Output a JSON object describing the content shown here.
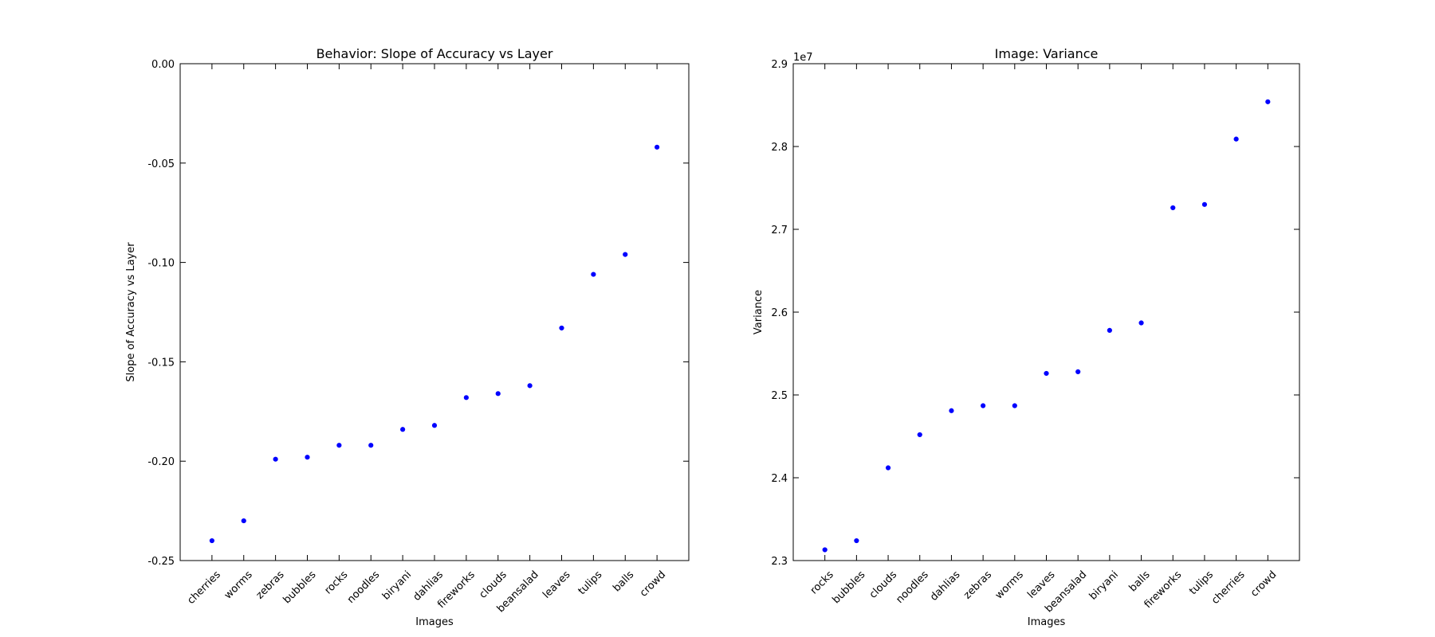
{
  "chart_data": [
    {
      "type": "scatter",
      "title": "Behavior: Slope of Accuracy vs Layer",
      "xlabel": "Images",
      "ylabel": "Slope of Accuracy vs Layer",
      "ylim": [
        -0.25,
        0.0
      ],
      "yticks": [
        "-0.25",
        "-0.20",
        "-0.15",
        "-0.10",
        "-0.05",
        "0.00"
      ],
      "grid": false,
      "marker_color": "#0000ff",
      "categories": [
        "cherries",
        "worms",
        "zebras",
        "bubbles",
        "rocks",
        "noodles",
        "biryani",
        "dahlias",
        "fireworks",
        "clouds",
        "beansalad",
        "leaves",
        "tulips",
        "balls",
        "crowd"
      ],
      "values": [
        -0.24,
        -0.23,
        -0.199,
        -0.198,
        -0.192,
        -0.192,
        -0.184,
        -0.182,
        -0.168,
        -0.166,
        -0.162,
        -0.133,
        -0.106,
        -0.096,
        -0.042
      ]
    },
    {
      "type": "scatter",
      "title": "Image: Variance",
      "xlabel": "Images",
      "ylabel": "Variance",
      "offset_label": "1e7",
      "ylim": [
        2.3,
        2.9
      ],
      "yticks": [
        "2.3",
        "2.4",
        "2.5",
        "2.6",
        "2.7",
        "2.8",
        "2.9"
      ],
      "grid": false,
      "marker_color": "#0000ff",
      "categories": [
        "rocks",
        "bubbles",
        "clouds",
        "noodles",
        "dahlias",
        "zebras",
        "worms",
        "leaves",
        "beansalad",
        "biryani",
        "balls",
        "fireworks",
        "tulips",
        "cherries",
        "crowd"
      ],
      "values": [
        2.313,
        2.324,
        2.412,
        2.452,
        2.481,
        2.487,
        2.487,
        2.526,
        2.528,
        2.578,
        2.587,
        2.726,
        2.73,
        2.809,
        2.854
      ]
    }
  ]
}
